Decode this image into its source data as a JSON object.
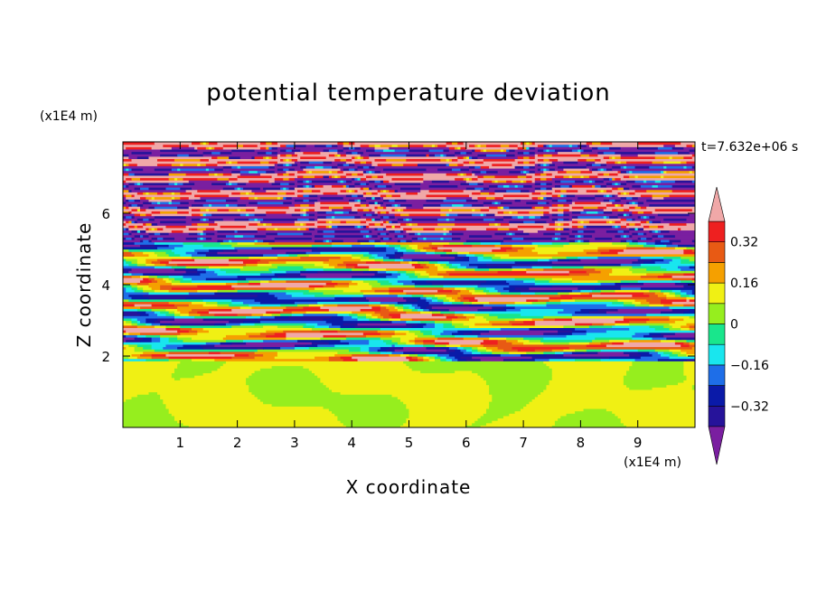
{
  "chart_data": {
    "type": "heatmap",
    "title": "potential temperature deviation",
    "xlabel": "X coordinate",
    "ylabel": "Z coordinate",
    "x_unit": "(x1E4 m)",
    "y_unit": "(x1E4 m)",
    "time_label": "t=7.632e+06 s",
    "xlim": [
      0,
      10
    ],
    "ylim": [
      0,
      8
    ],
    "x_ticks": [
      "1",
      "2",
      "3",
      "4",
      "5",
      "6",
      "7",
      "8",
      "9"
    ],
    "y_ticks": [
      "2",
      "4",
      "6"
    ],
    "grid": false,
    "colorbar": {
      "levels": [
        -0.4,
        -0.32,
        -0.24,
        -0.16,
        -0.08,
        0,
        0.08,
        0.16,
        0.24,
        0.32,
        0.4
      ],
      "tick_labels": [
        "0.32",
        "0.16",
        "0",
        "−0.16",
        "−0.32"
      ],
      "tick_values": [
        0.32,
        0.16,
        0,
        -0.16,
        -0.32
      ],
      "colors": [
        "#7a1fa0",
        "#26139a",
        "#0a1aa8",
        "#1e6ee8",
        "#19e6ee",
        "#19e68c",
        "#96ee1e",
        "#f0f014",
        "#f5a000",
        "#e85a14",
        "#ee2020",
        "#f0a8a8"
      ]
    },
    "fields": {
      "lower_layer_z_top": 1.85,
      "mid_turbulent_layer_z": [
        1.85,
        5.2
      ],
      "upper_banded_layer_z": [
        5.2,
        8.0
      ],
      "upper_bands": [
        {
          "z": 5.45,
          "v": -0.45
        },
        {
          "z": 5.65,
          "v": 0.45
        },
        {
          "z": 5.9,
          "v": -0.45
        },
        {
          "z": 6.1,
          "v": 0.45
        },
        {
          "z": 6.35,
          "v": -0.45
        },
        {
          "z": 6.55,
          "v": 0.45
        },
        {
          "z": 6.8,
          "v": -0.45
        },
        {
          "z": 7.05,
          "v": 0.45
        },
        {
          "z": 7.25,
          "v": -0.45
        },
        {
          "z": 7.5,
          "v": 0.45
        },
        {
          "z": 7.75,
          "v": -0.45
        },
        {
          "z": 7.95,
          "v": 0.45
        }
      ]
    }
  }
}
